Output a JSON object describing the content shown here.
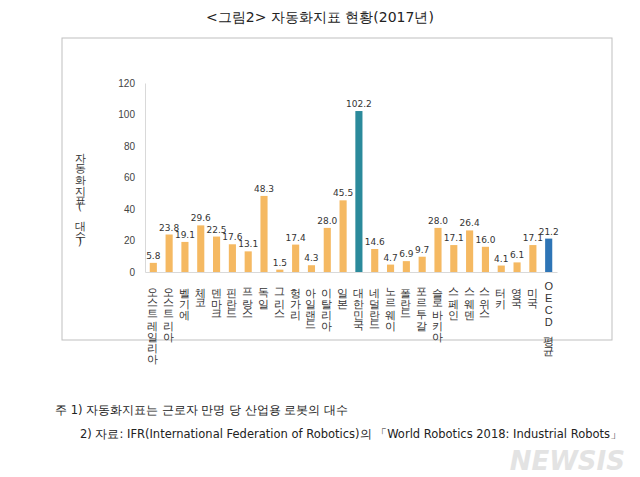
{
  "chart_data": {
    "type": "bar",
    "title": "<그림2> 자동화지표 현황(2017년)",
    "y_label": "자동화지표(대수)",
    "categories": [
      "오스트레일리아",
      "오스트리아",
      "벨기에",
      "체코",
      "덴마크",
      "핀란드",
      "프랑스",
      "독일",
      "그리스",
      "헝가리",
      "아일랜드",
      "이탈리아",
      "일본",
      "대한민국",
      "네덜란드",
      "노르웨이",
      "폴란드",
      "포르투갈",
      "슬로바키아",
      "스페인",
      "스웨덴",
      "스위스",
      "터키",
      "영국",
      "미국",
      "OECD평균"
    ],
    "values": [
      5.8,
      23.8,
      19.1,
      29.6,
      22.5,
      17.6,
      13.1,
      48.3,
      1.5,
      17.4,
      4.3,
      28.0,
      45.5,
      102.2,
      14.6,
      4.7,
      6.9,
      9.7,
      28.0,
      17.1,
      26.4,
      16.0,
      4.1,
      6.1,
      17.1,
      21.2
    ],
    "value_labels": [
      "5.8",
      "23.8",
      "19.1",
      "29.6",
      "22.5",
      "17.6",
      "13.1",
      "48.3",
      "1.5",
      "17.4",
      "4.3",
      "28.0",
      "45.5",
      "102.2",
      "14.6",
      "4.7",
      "6.9",
      "9.7",
      "28.0",
      "17.1",
      "26.4",
      "16.0",
      "4.1",
      "6.1",
      "17.1",
      "21.2"
    ],
    "colors": [
      "#f5b962",
      "#f5b962",
      "#f5b962",
      "#f5b962",
      "#f5b962",
      "#f5b962",
      "#f5b962",
      "#f5b962",
      "#f5b962",
      "#f5b962",
      "#f5b962",
      "#f5b962",
      "#f5b962",
      "#2b8a9b",
      "#f5b962",
      "#f5b962",
      "#f5b962",
      "#f5b962",
      "#f5b962",
      "#f5b962",
      "#f5b962",
      "#f5b962",
      "#f5b962",
      "#f5b962",
      "#f5b962",
      "#2e75b6"
    ],
    "data_labels": true,
    "grid": false,
    "ylim": [
      0,
      120
    ],
    "yticks": [
      0,
      20,
      40,
      60,
      80,
      100,
      120
    ],
    "annotations": [
      "주 1) 자동화지표는 근로자 만명 당 산업용 로봇의 대수",
      "2) 자료: IFR(International Federation of Robotics)의 「World Robotics 2018: Industrial Robots」"
    ],
    "watermark": "NEWSIS"
  }
}
